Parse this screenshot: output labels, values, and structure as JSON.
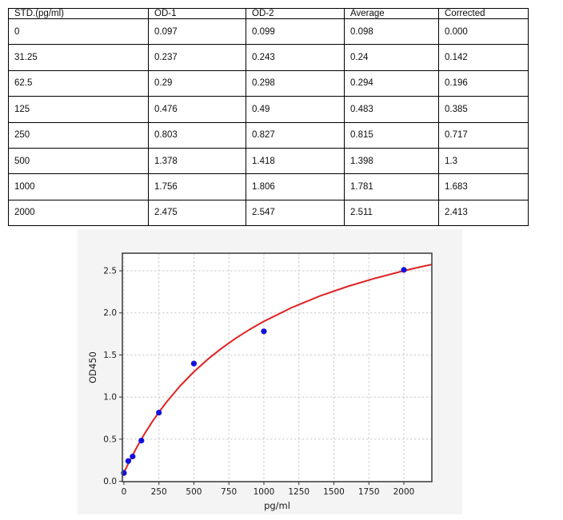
{
  "table": {
    "headers": [
      "STD.(pg/ml)",
      "OD-1",
      "OD-2",
      "Average",
      "Corrected"
    ],
    "rows": [
      [
        "0",
        "0.097",
        "0.099",
        "0.098",
        "0.000"
      ],
      [
        "31.25",
        "0.237",
        "0.243",
        "0.24",
        "0.142"
      ],
      [
        "62.5",
        "0.29",
        "0.298",
        "0.294",
        "0.196"
      ],
      [
        "125",
        "0.476",
        "0.49",
        "0.483",
        "0.385"
      ],
      [
        "250",
        "0.803",
        "0.827",
        "0.815",
        "0.717"
      ],
      [
        "500",
        "1.378",
        "1.418",
        "1.398",
        "1.3"
      ],
      [
        "1000",
        "1.756",
        "1.806",
        "1.781",
        "1.683"
      ],
      [
        "2000",
        "2.475",
        "2.547",
        "2.511",
        "2.413"
      ]
    ]
  },
  "chart_data": {
    "type": "scatter",
    "title": "",
    "xlabel": "pg/ml",
    "ylabel": "OD450",
    "xlim": [
      -11,
      2200
    ],
    "ylim": [
      -0.005,
      2.709
    ],
    "grid": true,
    "legend": "none",
    "xticks": [
      0,
      250,
      500,
      750,
      1000,
      1250,
      1500,
      1750,
      2000
    ],
    "xtick_labels": [
      "0",
      "250",
      "500",
      "750",
      "1000",
      "1250",
      "1500",
      "1750",
      "2000"
    ],
    "ytick_values": [
      0,
      0.5,
      1.0,
      1.5,
      2.0,
      2.5
    ],
    "ytick_labels": [
      "0.0",
      "0.5",
      "1.0",
      "1.5",
      "2.0",
      "2.5"
    ],
    "points": [
      [
        0,
        0.098
      ],
      [
        31.25,
        0.24
      ],
      [
        62.5,
        0.294
      ],
      [
        125,
        0.483
      ],
      [
        250,
        0.815
      ],
      [
        500,
        1.398
      ],
      [
        1000,
        1.781
      ],
      [
        2000,
        2.511
      ]
    ],
    "fit_curve": {
      "name": "standard-curve-fit",
      "points": [
        [
          -11,
          0.06
        ],
        [
          0,
          0.1
        ],
        [
          25,
          0.188
        ],
        [
          50,
          0.271
        ],
        [
          75,
          0.351
        ],
        [
          100,
          0.427
        ],
        [
          150,
          0.57
        ],
        [
          200,
          0.7
        ],
        [
          250,
          0.82
        ],
        [
          300,
          0.931
        ],
        [
          400,
          1.129
        ],
        [
          500,
          1.3
        ],
        [
          600,
          1.45
        ],
        [
          700,
          1.582
        ],
        [
          800,
          1.7
        ],
        [
          900,
          1.805
        ],
        [
          1000,
          1.9
        ],
        [
          1200,
          2.064
        ],
        [
          1400,
          2.2
        ],
        [
          1600,
          2.315
        ],
        [
          1800,
          2.414
        ],
        [
          2000,
          2.5
        ],
        [
          2100,
          2.539
        ],
        [
          2200,
          2.575
        ]
      ]
    },
    "colors": {
      "curve": "#e02222",
      "point": "#1111dd",
      "grid": "#c9c9c9",
      "frame": "#4f4f4f",
      "figure_bg": "#f4f4f4",
      "plot_bg": "#ffffff",
      "tick": "#333333"
    }
  }
}
